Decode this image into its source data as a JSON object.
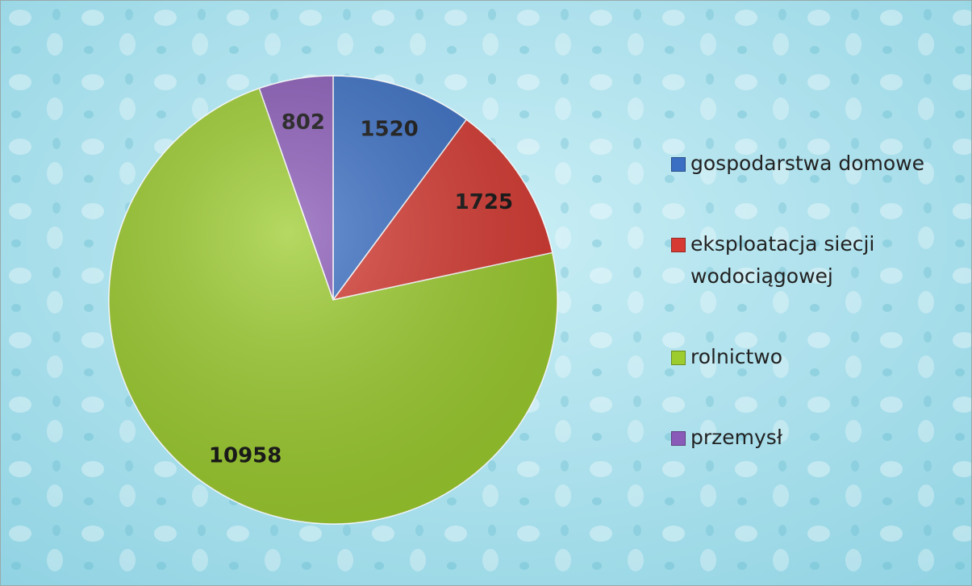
{
  "chart_data": {
    "type": "pie",
    "categories": [
      "gospodarstwa domowe",
      "eksploatacja siecji wodociągowej",
      "rolnictwo",
      "przemysł"
    ],
    "values": [
      1520,
      1725,
      10958,
      802
    ],
    "colors": [
      "#3a6fc4",
      "#d63a32",
      "#9ccc2e",
      "#8a5ab8"
    ],
    "legend": "right"
  }
}
